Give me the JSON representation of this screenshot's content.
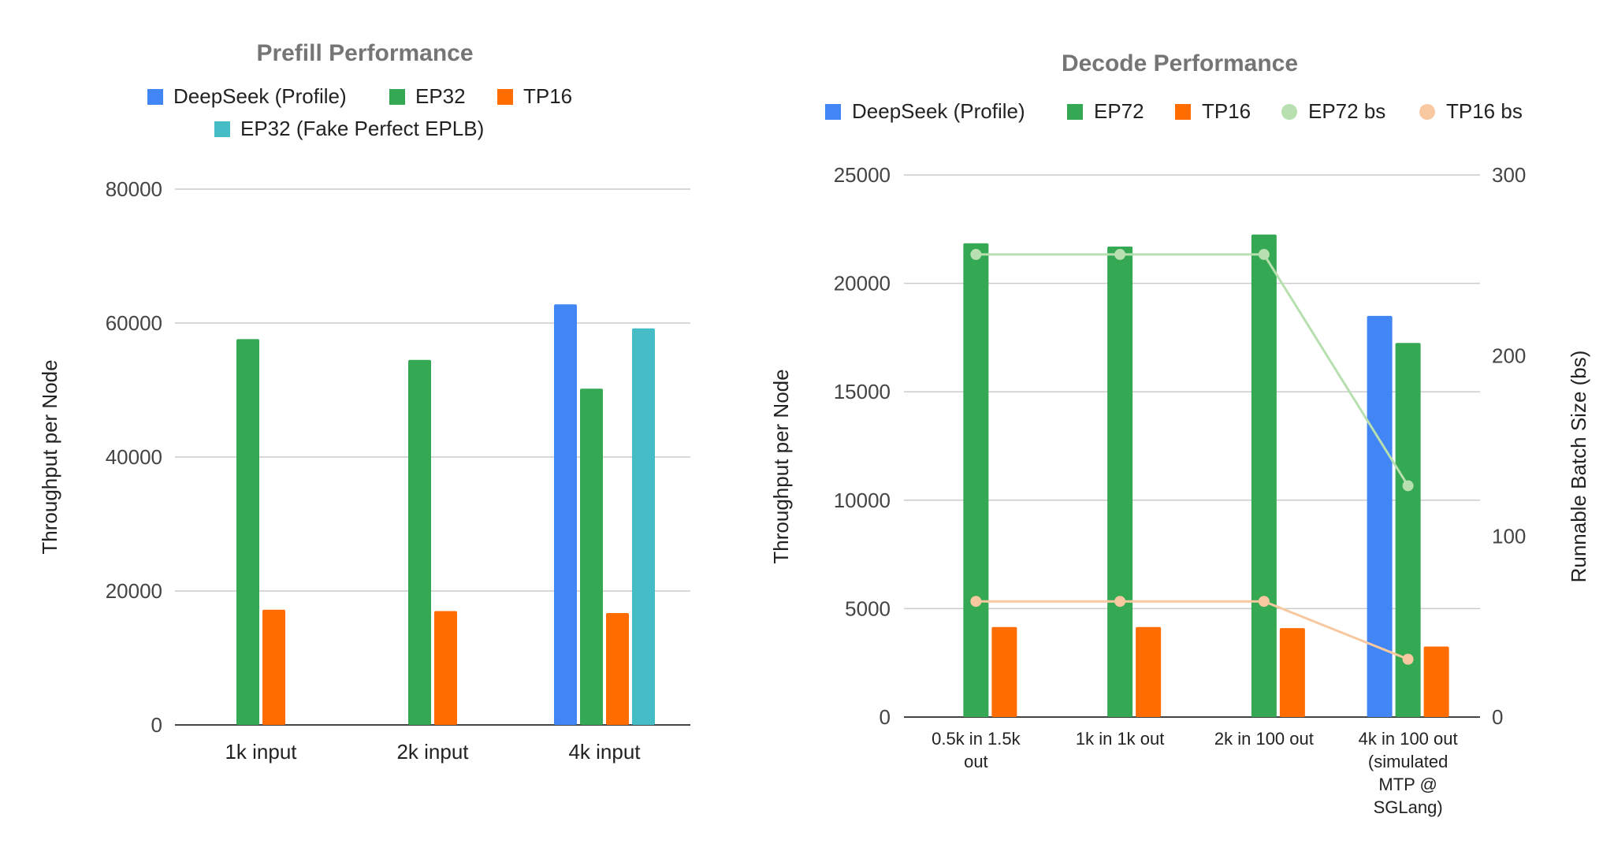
{
  "chart_data": [
    {
      "type": "bar",
      "title": "Prefill Performance",
      "ylabel": "Throughput per Node",
      "ylim": [
        0,
        80000
      ],
      "yticks": [
        "0",
        "20000",
        "40000",
        "60000",
        "80000"
      ],
      "categories": [
        "1k input",
        "2k input",
        "4k input"
      ],
      "grid": true,
      "legend_position": "top",
      "series": [
        {
          "name": "DeepSeek (Profile)",
          "color": "#4285f4",
          "values": [
            null,
            null,
            62800
          ]
        },
        {
          "name": "EP32",
          "color": "#34a853",
          "values": [
            57600,
            54500,
            50200
          ]
        },
        {
          "name": "TP16",
          "color": "#ff6d01",
          "values": [
            17200,
            17000,
            16700
          ]
        },
        {
          "name": "EP32 (Fake Perfect EPLB)",
          "color": "#46bdc6",
          "values": [
            null,
            null,
            59200
          ]
        }
      ]
    },
    {
      "type": "bar",
      "title": "Decode Performance",
      "ylabel": "Throughput per Node",
      "y2label": "Runnable Batch Size (bs)",
      "ylim": [
        0,
        25000
      ],
      "y2lim": [
        0,
        300
      ],
      "yticks": [
        "0",
        "5000",
        "10000",
        "15000",
        "20000",
        "25000"
      ],
      "y2ticks": [
        "0",
        "100",
        "200",
        "300"
      ],
      "categories": [
        [
          "0.5k in 1.5k",
          "out"
        ],
        [
          "1k in 1k out"
        ],
        [
          "2k in 100 out"
        ],
        [
          "4k in 100 out",
          "(simulated",
          "MTP @",
          "SGLang)"
        ]
      ],
      "grid": true,
      "legend_position": "top",
      "series": [
        {
          "name": "DeepSeek (Profile)",
          "color": "#4285f4",
          "type": "bar",
          "values": [
            null,
            null,
            null,
            18500
          ]
        },
        {
          "name": "EP72",
          "color": "#34a853",
          "type": "bar",
          "values": [
            21850,
            21700,
            22250,
            17250
          ]
        },
        {
          "name": "TP16",
          "color": "#ff6d01",
          "type": "bar",
          "values": [
            4150,
            4150,
            4100,
            3250
          ]
        },
        {
          "name": "EP72 bs",
          "color": "#b7dfb0",
          "type": "line",
          "axis": "right",
          "values": [
            256,
            256,
            256,
            128
          ]
        },
        {
          "name": "TP16 bs",
          "color": "#f8c9a0",
          "type": "line",
          "axis": "right",
          "values": [
            64,
            64,
            64,
            32
          ]
        }
      ]
    }
  ]
}
